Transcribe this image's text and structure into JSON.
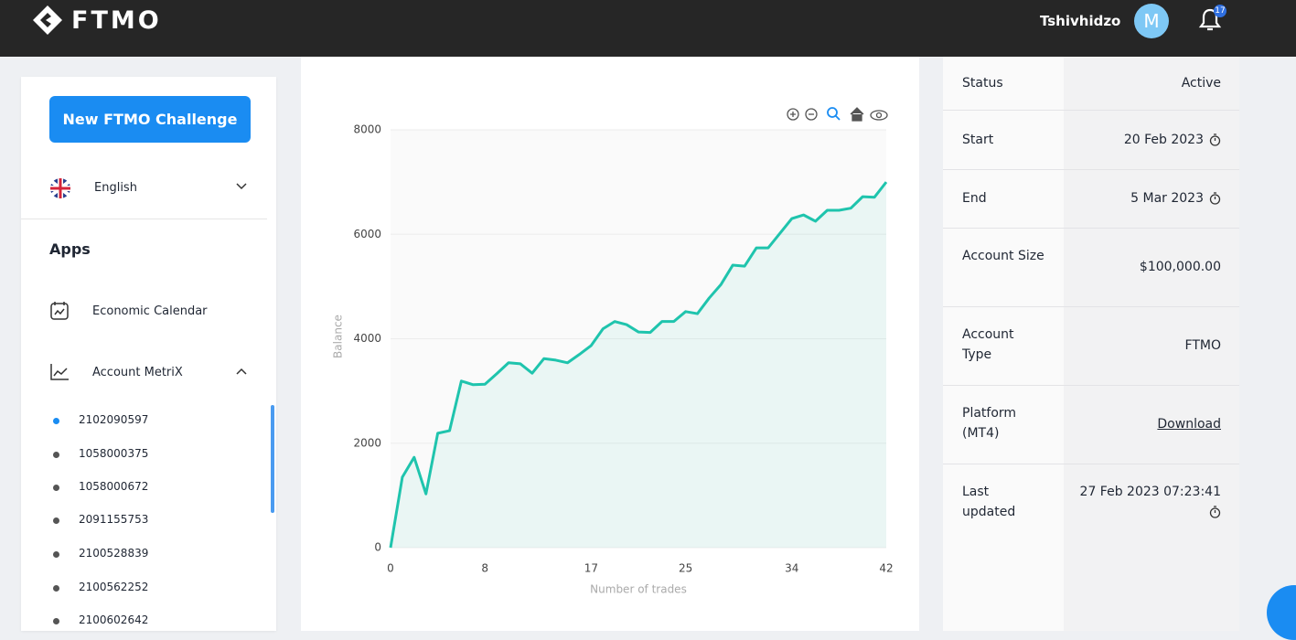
{
  "header": {
    "logo": "FTMO",
    "user": "Tshivhidzo",
    "avatar": "M",
    "notifications": "17"
  },
  "sidebar": {
    "button": "New FTMO Challenge",
    "language": "English",
    "section": "Apps",
    "items": [
      "Economic Calendar",
      "Account MetriX"
    ],
    "accounts": [
      "2102090597",
      "1058000375",
      "1058000672",
      "2091155753",
      "2100528839",
      "2100562252",
      "2100602642"
    ]
  },
  "chart_data": {
    "type": "line",
    "xlabel": "Number of trades",
    "ylabel": "Balance",
    "x": [
      0,
      1,
      2,
      3,
      4,
      5,
      6,
      7,
      8,
      9,
      10,
      11,
      12,
      13,
      14,
      15,
      16,
      17,
      18,
      19,
      20,
      21,
      22,
      23,
      24,
      25,
      26,
      27,
      28,
      29,
      30,
      31,
      32,
      33,
      34,
      35,
      36,
      37,
      38,
      39,
      40,
      41,
      42
    ],
    "values": [
      0,
      1350,
      1730,
      1030,
      2190,
      2240,
      3190,
      3120,
      3130,
      3330,
      3540,
      3520,
      3340,
      3620,
      3590,
      3540,
      3700,
      3870,
      4190,
      4330,
      4270,
      4130,
      4120,
      4330,
      4330,
      4520,
      4480,
      4780,
      5040,
      5410,
      5390,
      5740,
      5740,
      6020,
      6300,
      6370,
      6250,
      6460,
      6460,
      6500,
      6720,
      6710,
      7000
    ],
    "color": "#1fc4ad",
    "xlim": [
      0,
      42
    ],
    "xticks": [
      0,
      8,
      17,
      25,
      34,
      42
    ],
    "ylim": [
      0,
      8000
    ],
    "yticks": [
      0,
      2000,
      4000,
      6000,
      8000
    ],
    "grid": true
  },
  "account": {
    "rows": [
      [
        "Status",
        "Active"
      ],
      [
        "Start",
        "20 Feb 2023"
      ],
      [
        "End",
        "5 Mar 2023"
      ],
      [
        "Account Size",
        "$100,000.00"
      ],
      [
        "Account Type",
        "FTMO"
      ],
      [
        "Platform (MT4)",
        "Download"
      ],
      [
        "Last updated",
        "27 Feb 2023 07:23:41"
      ]
    ]
  }
}
